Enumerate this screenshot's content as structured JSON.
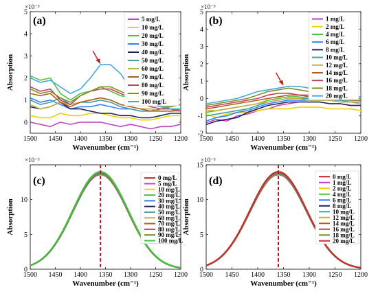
{
  "chart_data": [
    {
      "type": "line",
      "panel_label": "(a)",
      "xlabel": "Wavenumber (cm⁻¹)",
      "ylabel": "Absorption",
      "exponent_label": "×10⁻³",
      "xlim": [
        1500,
        1200
      ],
      "ylim": [
        -0.5,
        5
      ],
      "xticks": [
        1500,
        1450,
        1400,
        1350,
        1300,
        1250,
        1200
      ],
      "yticks": [
        0,
        1,
        2,
        3,
        4,
        5
      ],
      "grid": false,
      "legend_position": "top-right",
      "arrow_at": {
        "x": 1360,
        "y": 2.6
      },
      "x": [
        1500,
        1480,
        1460,
        1440,
        1420,
        1400,
        1380,
        1360,
        1340,
        1320,
        1300,
        1280,
        1260,
        1240,
        1220,
        1200
      ],
      "series": [
        {
          "name": "5 mg/L",
          "color": "#c040c0",
          "values": [
            0.0,
            -0.1,
            -0.2,
            0.0,
            -0.1,
            0.0,
            0.0,
            0.0,
            -0.1,
            -0.2,
            -0.1,
            -0.2,
            -0.3,
            -0.2,
            -0.2,
            -0.1
          ]
        },
        {
          "name": "10 mg/L",
          "color": "#f0d000",
          "values": [
            0.3,
            0.2,
            0.2,
            0.4,
            0.3,
            0.3,
            0.4,
            0.4,
            0.3,
            0.2,
            0.2,
            0.1,
            0.1,
            0.2,
            0.3,
            0.3
          ]
        },
        {
          "name": "20 mg/L",
          "color": "#50c040",
          "values": [
            2.1,
            1.9,
            2.0,
            1.3,
            1.0,
            1.3,
            1.4,
            1.6,
            1.4,
            1.2,
            1.1,
            0.9,
            0.8,
            0.7,
            0.6,
            0.5
          ]
        },
        {
          "name": "30 mg/L",
          "color": "#3080ff",
          "values": [
            1.1,
            0.9,
            1.0,
            0.8,
            0.6,
            0.7,
            0.7,
            0.8,
            0.7,
            0.6,
            0.6,
            0.5,
            0.5,
            0.6,
            0.7,
            0.8
          ]
        },
        {
          "name": "40 mg/L",
          "color": "#202060",
          "values": [
            0.7,
            0.6,
            0.7,
            0.9,
            0.6,
            0.6,
            0.5,
            0.4,
            0.4,
            0.3,
            0.3,
            0.2,
            0.2,
            0.3,
            0.4,
            0.4
          ]
        },
        {
          "name": "50 mg/L",
          "color": "#40a0a0",
          "values": [
            1.0,
            0.8,
            0.9,
            1.1,
            0.8,
            0.9,
            0.9,
            1.0,
            0.9,
            0.7,
            0.6,
            0.5,
            0.5,
            0.6,
            0.6,
            0.5
          ]
        },
        {
          "name": "60 mg/L",
          "color": "#c8b040",
          "values": [
            0.8,
            0.6,
            0.7,
            0.9,
            0.8,
            0.9,
            1.0,
            1.1,
            1.0,
            0.8,
            0.7,
            0.6,
            0.6,
            0.5,
            0.5,
            0.5
          ]
        },
        {
          "name": "70 mg/L",
          "color": "#b06020",
          "values": [
            1.3,
            1.2,
            1.3,
            0.9,
            0.7,
            0.9,
            1.0,
            1.1,
            1.0,
            0.8,
            0.7,
            0.6,
            0.5,
            0.5,
            0.5,
            0.6
          ]
        },
        {
          "name": "80 mg/L",
          "color": "#c04060",
          "values": [
            1.6,
            1.4,
            1.5,
            1.0,
            0.8,
            1.2,
            1.4,
            1.5,
            1.5,
            1.3,
            1.1,
            0.9,
            0.7,
            0.6,
            0.6,
            0.5
          ]
        },
        {
          "name": "90 mg/L",
          "color": "#809020",
          "values": [
            1.5,
            1.3,
            1.4,
            1.1,
            0.9,
            1.2,
            1.4,
            1.6,
            1.6,
            1.4,
            1.2,
            1.0,
            0.8,
            0.7,
            0.7,
            0.8
          ]
        },
        {
          "name": "100 mg/L",
          "color": "#40a8e0",
          "values": [
            2.0,
            1.8,
            1.9,
            1.6,
            1.3,
            1.5,
            2.0,
            2.6,
            2.6,
            2.2,
            1.5,
            1.1,
            0.8,
            0.7,
            0.6,
            0.6
          ]
        }
      ]
    },
    {
      "type": "line",
      "panel_label": "(b)",
      "xlabel": "Wavenumber (cm⁻¹)",
      "ylabel": "Absorption",
      "exponent_label": "×10⁻³",
      "xlim": [
        1500,
        1200
      ],
      "ylim": [
        -2,
        5
      ],
      "xticks": [
        1500,
        1450,
        1400,
        1350,
        1300,
        1250,
        1200
      ],
      "yticks": [
        -2,
        -1,
        0,
        1,
        2,
        3,
        4,
        5
      ],
      "grid": false,
      "legend_position": "top-right",
      "arrow_at": {
        "x": 1350,
        "y": 0.7
      },
      "x": [
        1500,
        1480,
        1460,
        1440,
        1420,
        1400,
        1380,
        1360,
        1340,
        1320,
        1300,
        1280,
        1260,
        1240,
        1220,
        1200
      ],
      "series": [
        {
          "name": "1 mg/L",
          "color": "#c040c0",
          "values": [
            -1.4,
            -1.2,
            -1.3,
            -1.0,
            -0.9,
            -0.7,
            -0.6,
            -0.4,
            -0.3,
            -0.2,
            -0.2,
            -0.2,
            -0.3,
            -0.3,
            -0.4,
            -0.4
          ]
        },
        {
          "name": "2 mg/L",
          "color": "#f0d000",
          "values": [
            -0.9,
            -1.1,
            -0.9,
            -0.8,
            -0.8,
            -0.7,
            -0.6,
            -0.6,
            -0.6,
            -0.5,
            -0.5,
            -0.5,
            -0.6,
            -0.6,
            -0.6,
            -0.7
          ]
        },
        {
          "name": "4 mg/L",
          "color": "#50c040",
          "values": [
            -0.8,
            -0.7,
            -0.6,
            -0.5,
            -0.4,
            -0.3,
            -0.1,
            0.0,
            0.1,
            0.1,
            0.0,
            0.0,
            0.0,
            -0.1,
            -0.1,
            -0.1
          ]
        },
        {
          "name": "6 mg/L",
          "color": "#3080ff",
          "values": [
            -1.3,
            -1.1,
            -1.0,
            -0.8,
            -0.7,
            -0.5,
            -0.3,
            -0.2,
            -0.1,
            -0.1,
            -0.1,
            -0.1,
            -0.1,
            -0.2,
            -0.2,
            -0.3
          ]
        },
        {
          "name": "8 mg/L",
          "color": "#202060",
          "values": [
            -1.5,
            -1.3,
            -1.2,
            -1.1,
            -0.8,
            -0.6,
            -0.4,
            -0.3,
            -0.2,
            -0.2,
            -0.2,
            -0.2,
            -0.3,
            -0.3,
            -0.4,
            -0.4
          ]
        },
        {
          "name": "10 mg/L",
          "color": "#40a0a0",
          "values": [
            -1.0,
            -0.9,
            -0.8,
            -0.7,
            -0.6,
            -0.4,
            -0.2,
            -0.1,
            0.0,
            0.0,
            0.0,
            0.0,
            -0.1,
            -0.1,
            -0.2,
            -0.2
          ]
        },
        {
          "name": "12 mg/L",
          "color": "#c8b040",
          "values": [
            -0.7,
            -0.7,
            -0.6,
            -0.5,
            -0.4,
            -0.3,
            -0.2,
            -0.1,
            0.0,
            0.0,
            -0.1,
            -0.1,
            -0.1,
            -0.2,
            -0.2,
            -0.3
          ]
        },
        {
          "name": "14 mg/L",
          "color": "#b06020",
          "values": [
            -0.6,
            -0.5,
            -0.4,
            -0.3,
            -0.2,
            -0.1,
            0.0,
            0.1,
            0.2,
            0.2,
            0.1,
            0.1,
            0.0,
            0.0,
            -0.1,
            -0.1
          ]
        },
        {
          "name": "16 mg/L",
          "color": "#c04060",
          "values": [
            -0.5,
            -0.4,
            -0.3,
            -0.2,
            -0.1,
            0.0,
            0.2,
            0.3,
            0.3,
            0.2,
            0.2,
            0.1,
            0.1,
            0.0,
            0.0,
            -0.1
          ]
        },
        {
          "name": "18 mg/L",
          "color": "#809020",
          "values": [
            -0.4,
            -0.3,
            -0.2,
            -0.1,
            0.0,
            0.2,
            0.4,
            0.5,
            0.6,
            0.5,
            0.4,
            0.3,
            0.2,
            0.1,
            0.1,
            0.0
          ]
        },
        {
          "name": "20 mg/L",
          "color": "#40a8e0",
          "values": [
            -0.3,
            -0.2,
            -0.1,
            0.0,
            0.2,
            0.4,
            0.5,
            0.6,
            0.7,
            0.7,
            0.6,
            0.5,
            0.4,
            0.3,
            0.2,
            0.1
          ]
        }
      ]
    },
    {
      "type": "line",
      "panel_label": "(c)",
      "xlabel": "Wavenumber (cm⁻¹)",
      "ylabel": "Absorption",
      "exponent_label": "×10⁻³",
      "xlim": [
        1500,
        1200
      ],
      "ylim": [
        0,
        15
      ],
      "xticks": [
        1500,
        1450,
        1400,
        1350,
        1300,
        1250,
        1200
      ],
      "yticks": [
        0,
        5,
        10
      ],
      "grid": false,
      "legend_position": "top-right",
      "peak_line_x": 1360,
      "gaussian": {
        "center": 1360,
        "width": 55,
        "amplitude_min": 13.6,
        "amplitude_max": 14.0
      },
      "series": [
        {
          "name": "0 mg/L",
          "color": "#c02020"
        },
        {
          "name": "5 mg/L",
          "color": "#c040c0"
        },
        {
          "name": "10 mg/L",
          "color": "#f0d000"
        },
        {
          "name": "20 mg/L",
          "color": "#50c040"
        },
        {
          "name": "30 mg/L",
          "color": "#3080ff"
        },
        {
          "name": "40 mg/L",
          "color": "#202060"
        },
        {
          "name": "50 mg/L",
          "color": "#40a0a0"
        },
        {
          "name": "60 mg/L",
          "color": "#c8b040"
        },
        {
          "name": "70 mg/L",
          "color": "#b06020"
        },
        {
          "name": "80 mg/L",
          "color": "#c04060"
        },
        {
          "name": "90 mg/L",
          "color": "#809020"
        },
        {
          "name": "100 mg/L",
          "color": "#40c040"
        }
      ]
    },
    {
      "type": "line",
      "panel_label": "(d)",
      "xlabel": "Wavenumber (cm⁻¹)",
      "ylabel": "Absorption",
      "exponent_label": "×10⁻³",
      "xlim": [
        1500,
        1200
      ],
      "ylim": [
        0,
        15
      ],
      "xticks": [
        1500,
        1450,
        1400,
        1350,
        1300,
        1250,
        1200
      ],
      "yticks": [
        0,
        5,
        10,
        15
      ],
      "grid": false,
      "legend_position": "top-right",
      "peak_line_x": 1360,
      "gaussian": {
        "center": 1360,
        "width": 55,
        "amplitude_min": 13.6,
        "amplitude_max": 14.0
      },
      "series": [
        {
          "name": "0 mg/L",
          "color": "#c02020"
        },
        {
          "name": "1 mg/L",
          "color": "#c040c0"
        },
        {
          "name": "2 mg/L",
          "color": "#f0d000"
        },
        {
          "name": "4 mg/L",
          "color": "#50c040"
        },
        {
          "name": "6 mg/L",
          "color": "#3080ff"
        },
        {
          "name": "8 mg/L",
          "color": "#202060"
        },
        {
          "name": "10 mg/L",
          "color": "#40a0a0"
        },
        {
          "name": "12 mg/L",
          "color": "#c8b040"
        },
        {
          "name": "14 mg/L",
          "color": "#b06020"
        },
        {
          "name": "16 mg/L",
          "color": "#c04060"
        },
        {
          "name": "18 mg/L",
          "color": "#809020"
        },
        {
          "name": "20 mg/L",
          "color": "#c03030"
        }
      ]
    }
  ]
}
